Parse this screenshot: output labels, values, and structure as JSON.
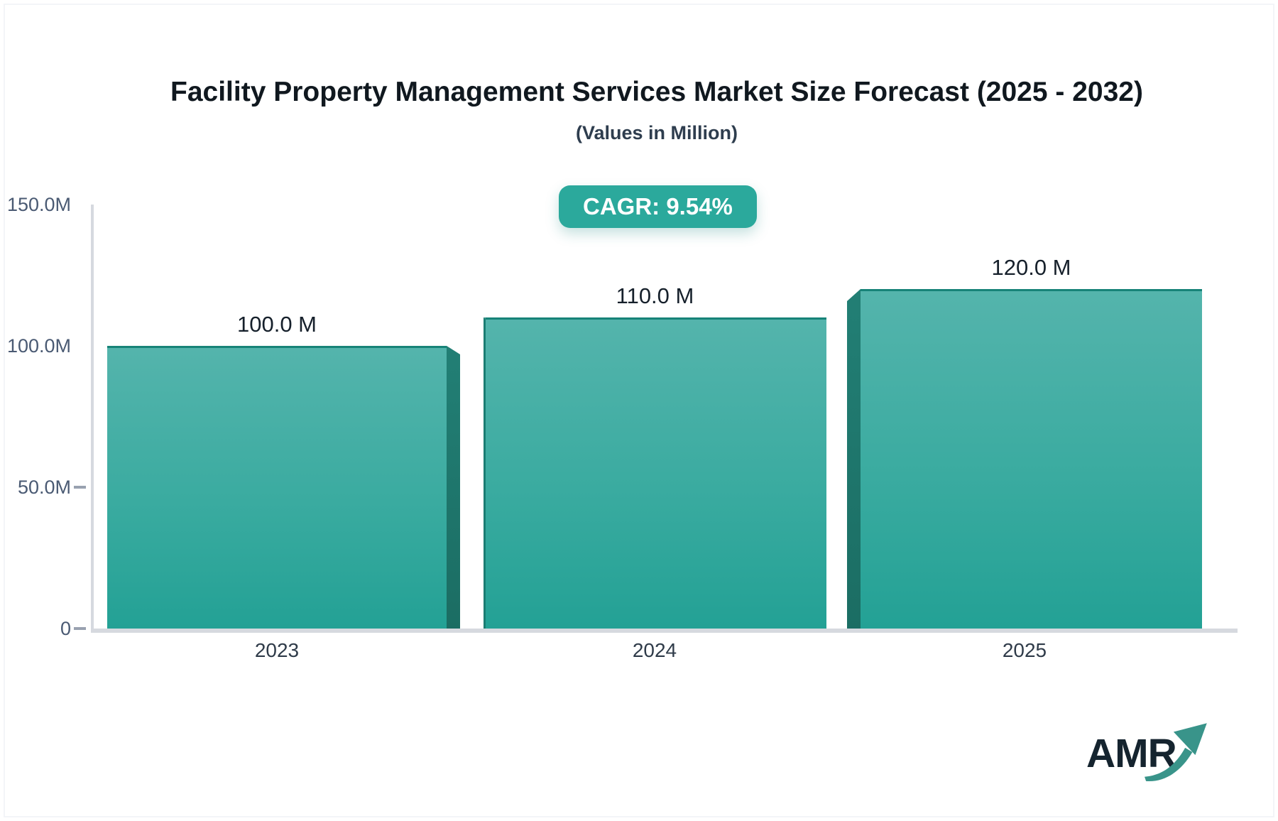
{
  "header": {
    "title": "Facility Property Management Services Market Size Forecast (2025 - 2032)",
    "subtitle": "(Values in Million)"
  },
  "badge": {
    "label": "CAGR: 9.54%",
    "color": "#2ba99c"
  },
  "chart_data": {
    "type": "bar",
    "title": "Facility Property Management Services Market Size Forecast (2025 - 2032)",
    "subtitle": "(Values in Million)",
    "categories": [
      "2023",
      "2024",
      "2025"
    ],
    "values": [
      100.0,
      110.0,
      120.0
    ],
    "value_labels": [
      "100.0 M",
      "110.0 M",
      "120.0 M"
    ],
    "unit": "Million",
    "cagr_percent": 9.54,
    "xlabel": "",
    "ylabel": "",
    "ylim": [
      0,
      150
    ],
    "yticks": [
      {
        "value": 150,
        "label": "150.0M",
        "dash": false
      },
      {
        "value": 100,
        "label": "100.0M",
        "dash": false
      },
      {
        "value": 50,
        "label": "50.0M",
        "dash": true
      },
      {
        "value": 0,
        "label": "0",
        "dash": true
      }
    ],
    "grid": false,
    "legend": false,
    "bar_color_top": "#54b4ac",
    "bar_color_bottom": "#23a195",
    "bar_side_color": "#1f7a70"
  },
  "logo": {
    "text": "AMR",
    "arrow_color": "#39948a",
    "text_color": "#15242f"
  }
}
